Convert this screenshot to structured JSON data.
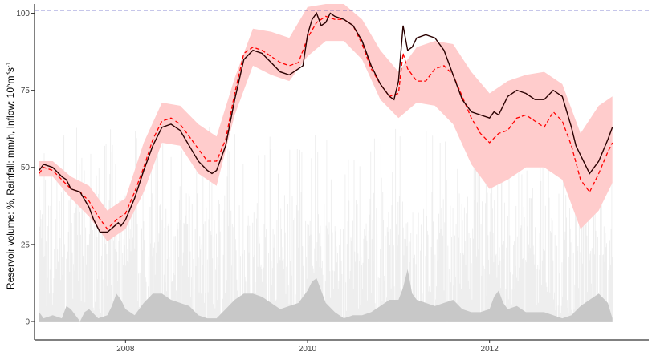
{
  "chart_data": {
    "type": "line",
    "title": "",
    "ylabel": {
      "base": "Reservoir volume: %, Rainfall: mm/h, Inflow: 10",
      "sup1": "5",
      "mid": "m",
      "sup2": "3",
      "tail": "s",
      "sup3": "-1"
    },
    "xlabel": "",
    "xlim": [
      2007.0,
      2013.75
    ],
    "ylim": [
      -6,
      103
    ],
    "x_ticks": [
      {
        "value": 2008,
        "label": "2008"
      },
      {
        "value": 2010,
        "label": "2010"
      },
      {
        "value": 2012,
        "label": "2012"
      }
    ],
    "y_ticks": [
      {
        "value": 0,
        "label": "0"
      },
      {
        "value": 25,
        "label": "25"
      },
      {
        "value": 50,
        "label": "50"
      },
      {
        "value": 75,
        "label": "75"
      },
      {
        "value": 100,
        "label": "100"
      }
    ],
    "reference_line": {
      "y": 101,
      "color": "#1a1aaa",
      "style": "dashed"
    },
    "colors": {
      "observed": "#2a0000",
      "predicted": "#ff0000",
      "band": "#ffcccc",
      "rainfall": "#eeeeee",
      "inflow": "#c8c8c8"
    },
    "series": [
      {
        "key": "observed",
        "x": [
          2007.05,
          2007.1,
          2007.2,
          2007.3,
          2007.35,
          2007.4,
          2007.5,
          2007.6,
          2007.65,
          2007.72,
          2007.8,
          2007.88,
          2007.92,
          2007.95,
          2008.0,
          2008.1,
          2008.2,
          2008.3,
          2008.4,
          2008.5,
          2008.6,
          2008.7,
          2008.8,
          2008.9,
          2008.95,
          2009.0,
          2009.1,
          2009.2,
          2009.3,
          2009.4,
          2009.5,
          2009.6,
          2009.7,
          2009.8,
          2009.9,
          2009.95,
          2010.0,
          2010.05,
          2010.1,
          2010.15,
          2010.2,
          2010.25,
          2010.3,
          2010.4,
          2010.5,
          2010.6,
          2010.7,
          2010.8,
          2010.9,
          2010.95,
          2011.0,
          2011.05,
          2011.1,
          2011.15,
          2011.2,
          2011.3,
          2011.4,
          2011.5,
          2011.6,
          2011.7,
          2011.8,
          2011.9,
          2012.0,
          2012.05,
          2012.1,
          2012.2,
          2012.3,
          2012.4,
          2012.5,
          2012.6,
          2012.7,
          2012.8,
          2012.9,
          2012.95,
          2013.0,
          2013.1,
          2013.2,
          2013.3
        ],
        "y": [
          49,
          51,
          50,
          47,
          46,
          43,
          42,
          37,
          33,
          29,
          29,
          31,
          32,
          31,
          33,
          40,
          49,
          57,
          63,
          64,
          62,
          57,
          52,
          49,
          48,
          49,
          57,
          72,
          85,
          88,
          87,
          84,
          81,
          80,
          82,
          83,
          93,
          98,
          100,
          96,
          97,
          100,
          99,
          98,
          96,
          91,
          83,
          77,
          73,
          72,
          78,
          96,
          88,
          89,
          92,
          93,
          92,
          88,
          80,
          72,
          68,
          67,
          66,
          68,
          67,
          73,
          75,
          74,
          72,
          72,
          75,
          73,
          63,
          57,
          54,
          48,
          52,
          59
        ],
        "x_end": 2013.35,
        "y_end": 63
      },
      {
        "key": "predicted",
        "x": [
          2007.05,
          2007.1,
          2007.2,
          2007.3,
          2007.4,
          2007.5,
          2007.6,
          2007.7,
          2007.8,
          2007.9,
          2008.0,
          2008.1,
          2008.2,
          2008.3,
          2008.4,
          2008.5,
          2008.6,
          2008.7,
          2008.8,
          2008.9,
          2009.0,
          2009.1,
          2009.2,
          2009.3,
          2009.4,
          2009.5,
          2009.6,
          2009.7,
          2009.8,
          2009.9,
          2010.0,
          2010.1,
          2010.2,
          2010.3,
          2010.4,
          2010.5,
          2010.6,
          2010.7,
          2010.8,
          2010.9,
          2011.0,
          2011.05,
          2011.1,
          2011.2,
          2011.3,
          2011.4,
          2011.5,
          2011.6,
          2011.7,
          2011.8,
          2011.9,
          2012.0,
          2012.1,
          2012.2,
          2012.3,
          2012.4,
          2012.5,
          2012.6,
          2012.7,
          2012.8,
          2012.9,
          2013.0,
          2013.1,
          2013.2,
          2013.3
        ],
        "y": [
          48,
          50,
          49,
          46,
          43,
          42,
          39,
          34,
          30,
          33,
          35,
          42,
          50,
          59,
          65,
          66,
          64,
          60,
          56,
          52,
          52,
          59,
          74,
          87,
          89,
          88,
          86,
          84,
          83,
          84,
          92,
          97,
          99,
          98,
          98,
          96,
          90,
          82,
          77,
          73,
          74,
          87,
          82,
          78,
          78,
          82,
          83,
          80,
          73,
          66,
          61,
          58,
          61,
          62,
          66,
          67,
          65,
          63,
          68,
          65,
          57,
          46,
          42,
          48,
          55
        ],
        "x_end": 2013.35,
        "y_end": 58
      },
      {
        "key": "band",
        "x": [
          2007.05,
          2007.2,
          2007.4,
          2007.6,
          2007.8,
          2008.0,
          2008.2,
          2008.4,
          2008.6,
          2008.8,
          2009.0,
          2009.2,
          2009.4,
          2009.6,
          2009.8,
          2010.0,
          2010.2,
          2010.4,
          2010.6,
          2010.8,
          2011.0,
          2011.2,
          2011.4,
          2011.6,
          2011.8,
          2012.0,
          2012.2,
          2012.4,
          2012.6,
          2012.8,
          2013.0,
          2013.2,
          2013.35
        ],
        "upper": [
          52,
          52,
          47,
          44,
          36,
          40,
          58,
          71,
          70,
          64,
          60,
          79,
          95,
          94,
          92,
          102,
          103,
          103,
          98,
          88,
          81,
          89,
          91,
          90,
          81,
          74,
          78,
          80,
          81,
          77,
          61,
          70,
          73
        ],
        "lower": [
          47,
          47,
          40,
          34,
          26,
          30,
          42,
          58,
          57,
          48,
          44,
          67,
          83,
          80,
          78,
          86,
          91,
          91,
          85,
          72,
          66,
          71,
          70,
          64,
          51,
          43,
          46,
          50,
          50,
          46,
          30,
          36,
          45
        ]
      },
      {
        "key": "inflow",
        "x": [
          2007.05,
          2007.1,
          2007.2,
          2007.3,
          2007.35,
          2007.4,
          2007.5,
          2007.55,
          2007.6,
          2007.7,
          2007.8,
          2007.85,
          2007.9,
          2007.95,
          2008.0,
          2008.05,
          2008.1,
          2008.2,
          2008.3,
          2008.4,
          2008.5,
          2008.6,
          2008.7,
          2008.8,
          2008.9,
          2009.0,
          2009.1,
          2009.2,
          2009.3,
          2009.4,
          2009.5,
          2009.6,
          2009.7,
          2009.8,
          2009.9,
          2010.0,
          2010.05,
          2010.1,
          2010.15,
          2010.2,
          2010.3,
          2010.4,
          2010.5,
          2010.6,
          2010.7,
          2010.8,
          2010.9,
          2011.0,
          2011.05,
          2011.1,
          2011.15,
          2011.2,
          2011.3,
          2011.4,
          2011.5,
          2011.6,
          2011.7,
          2011.8,
          2011.9,
          2012.0,
          2012.05,
          2012.1,
          2012.15,
          2012.2,
          2012.3,
          2012.4,
          2012.5,
          2012.6,
          2012.7,
          2012.8,
          2012.9,
          2013.0,
          2013.1,
          2013.2,
          2013.3,
          2013.35
        ],
        "y": [
          3,
          1,
          2,
          1,
          5,
          4,
          0,
          3,
          4,
          1,
          2,
          5,
          9,
          7,
          4,
          3,
          2,
          6,
          9,
          9,
          7,
          6,
          5,
          2,
          1,
          1,
          4,
          7,
          9,
          9,
          8,
          6,
          4,
          5,
          6,
          10,
          13,
          14,
          10,
          6,
          3,
          1,
          2,
          2,
          3,
          5,
          7,
          7,
          11,
          17,
          9,
          7,
          6,
          5,
          6,
          7,
          4,
          3,
          3,
          4,
          8,
          10,
          6,
          4,
          5,
          3,
          3,
          3,
          2,
          1,
          2,
          5,
          7,
          9,
          6,
          1
        ]
      }
    ],
    "rainfall": {
      "x_start": 2007.05,
      "x_end": 2013.35,
      "count": 900,
      "typical_max": 60
    }
  }
}
